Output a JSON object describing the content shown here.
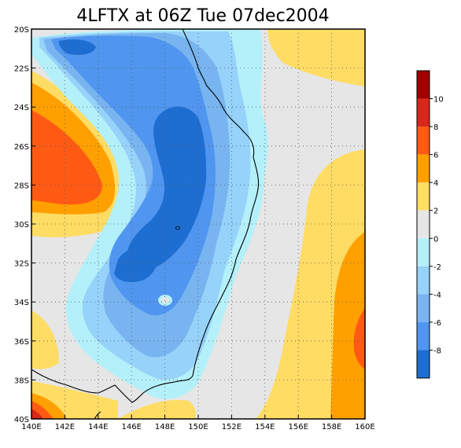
{
  "title": "4LFTX at 06Z Tue 07dec2004",
  "map": {
    "lon_labels": [
      "140E",
      "142E",
      "144E",
      "146E",
      "148E",
      "150E",
      "152E",
      "154E",
      "156E",
      "158E",
      "160E"
    ],
    "lat_labels": [
      "20S",
      "22S",
      "24S",
      "26S",
      "28S",
      "30S",
      "32S",
      "34S",
      "36S",
      "38S",
      "40S"
    ],
    "grid_dotted": true,
    "background_color": "#e6e6e6",
    "coastline_color": "#000000"
  },
  "colorbar": {
    "placement": "right",
    "labels": [
      "10",
      "8",
      "6",
      "4",
      "2",
      "0",
      "-2",
      "-4",
      "-6",
      "-8"
    ],
    "colors": [
      "#a00000",
      "#d8281c",
      "#ff5a14",
      "#ffa000",
      "#ffdc64",
      "#e6e6e6",
      "#b4f0fa",
      "#96d2fa",
      "#78b4f0",
      "#5096f0",
      "#1e6ed2"
    ]
  }
}
